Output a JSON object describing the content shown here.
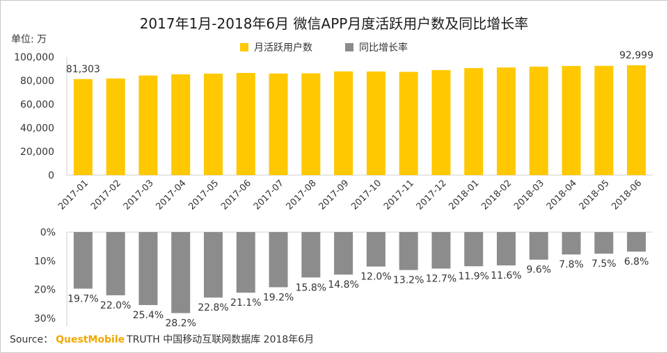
{
  "chart_data": {
    "type": "bar",
    "title": "2017年1月-2018年6月 微信APP月度活跃用户数及同比增长率",
    "unit_label": "单位: 万",
    "categories": [
      "2017-01",
      "2017-02",
      "2017-03",
      "2017-04",
      "2017-05",
      "2017-06",
      "2017-07",
      "2017-08",
      "2017-09",
      "2017-10",
      "2017-11",
      "2017-12",
      "2018-01",
      "2018-02",
      "2018-03",
      "2018-04",
      "2018-05",
      "2018-06"
    ],
    "series": [
      {
        "name": "月活跃用户数",
        "color": "#ffc800",
        "values": [
          81303,
          81800,
          84300,
          85300,
          85900,
          86500,
          86000,
          86200,
          87800,
          87700,
          87400,
          88900,
          90600,
          91100,
          91800,
          92400,
          92500,
          92999
        ],
        "ylim": [
          0,
          100000
        ],
        "yticks": [
          "0",
          "20,000",
          "40,000",
          "60,000",
          "80,000",
          "100,000"
        ],
        "data_labels": [
          {
            "index": 0,
            "text": "81,303"
          },
          {
            "index": 17,
            "text": "92,999"
          }
        ]
      },
      {
        "name": "同比增长率",
        "color": "#8c8c8c",
        "values": [
          19.7,
          22.0,
          25.4,
          28.2,
          22.8,
          21.1,
          19.2,
          15.8,
          14.8,
          12.0,
          13.2,
          12.7,
          11.9,
          11.6,
          9.6,
          7.8,
          7.5,
          6.8
        ],
        "labels": [
          "19.7%",
          "22.0%",
          "25.4%",
          "28.2%",
          "22.8%",
          "21.1%",
          "19.2%",
          "15.8%",
          "14.8%",
          "12.0%",
          "13.2%",
          "12.7%",
          "11.9%",
          "11.6%",
          "9.6%",
          "7.8%",
          "7.5%",
          "6.8%"
        ],
        "ylim": [
          0,
          30
        ],
        "yticks": [
          "0%",
          "10%",
          "20%",
          "30%"
        ],
        "direction": "downward"
      }
    ],
    "legend_position": "top-center",
    "grid": false
  },
  "source": {
    "prefix": "Source：",
    "brand": "QuestMobile",
    "text": "TRUTH 中国移动互联网数据库 2018年6月"
  }
}
